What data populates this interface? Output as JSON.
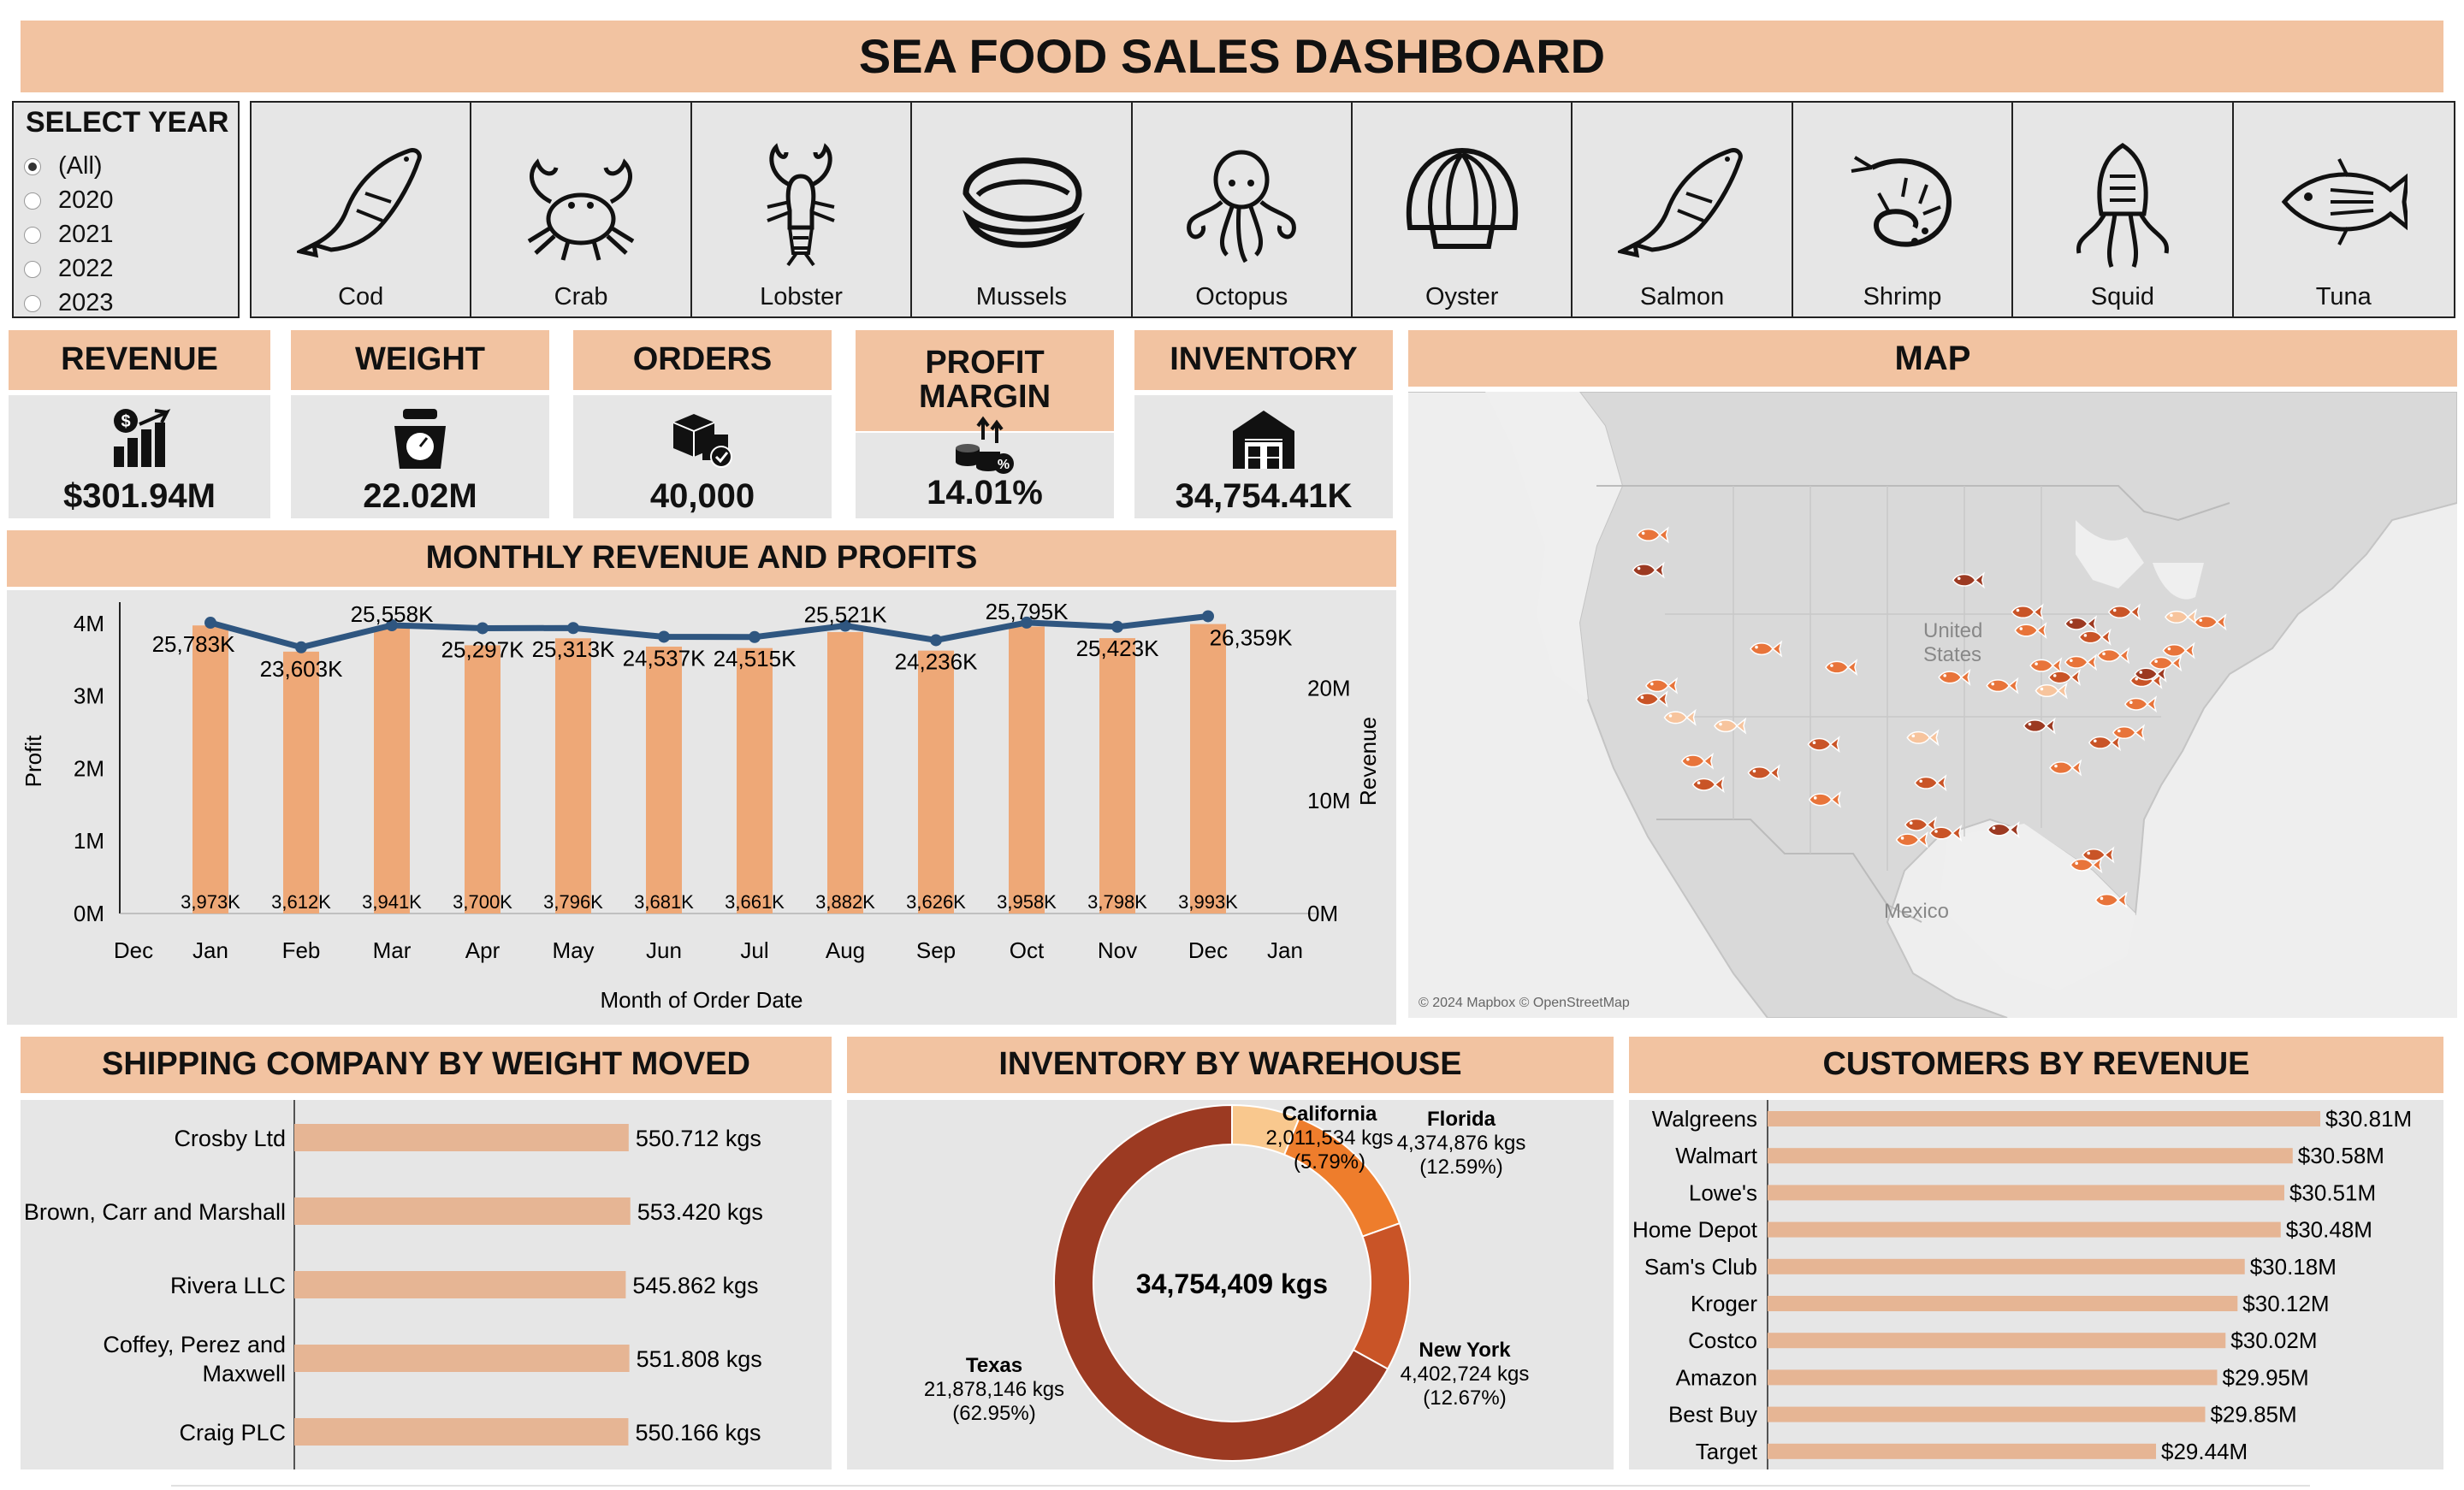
{
  "title": "SEA FOOD SALES DASHBOARD",
  "year_filter": {
    "label": "SELECT YEAR",
    "options": [
      "(All)",
      "2020",
      "2021",
      "2022",
      "2023"
    ],
    "selected": "(All)"
  },
  "species": [
    {
      "name": "Cod",
      "icon": "cod-icon"
    },
    {
      "name": "Crab",
      "icon": "crab-icon"
    },
    {
      "name": "Lobster",
      "icon": "lobster-icon"
    },
    {
      "name": "Mussels",
      "icon": "mussels-icon"
    },
    {
      "name": "Octopus",
      "icon": "octopus-icon"
    },
    {
      "name": "Oyster",
      "icon": "oyster-icon"
    },
    {
      "name": "Salmon",
      "icon": "salmon-icon"
    },
    {
      "name": "Shrimp",
      "icon": "shrimp-icon"
    },
    {
      "name": "Squid",
      "icon": "squid-icon"
    },
    {
      "name": "Tuna",
      "icon": "tuna-icon"
    }
  ],
  "kpis": {
    "revenue": {
      "label": "REVENUE",
      "value": "$301.94M",
      "icon": "revenue-growth-icon"
    },
    "weight": {
      "label": "WEIGHT",
      "value": "22.02M",
      "icon": "scale-icon"
    },
    "orders": {
      "label": "ORDERS",
      "value": "40,000",
      "icon": "boxes-icon"
    },
    "profit_margin": {
      "label_line1": "PROFIT",
      "label_line2": "MARGIN",
      "value": "14.01%",
      "icon": "coins-percent-icon"
    },
    "inventory": {
      "label": "INVENTORY",
      "value": "34,754.41K",
      "icon": "warehouse-icon"
    }
  },
  "map": {
    "title": "MAP",
    "label_us_1": "United",
    "label_us_2": "States",
    "label_mexico": "Mexico",
    "attribution": "© 2024 Mapbox © OpenStreetMap"
  },
  "monthly": {
    "title": "MONTHLY REVENUE AND PROFITS",
    "xlabel": "Month of Order Date",
    "left_axis_title": "Profit",
    "right_axis_title": "Revenue",
    "left_ticks": [
      "4M",
      "3M",
      "2M",
      "1M",
      "0M"
    ],
    "right_ticks": [
      "20M",
      "10M",
      "0M"
    ],
    "x_edge_start": "Dec",
    "x_edge_end": "Jan"
  },
  "chart_data": [
    {
      "type": "bar+line",
      "title": "MONTHLY REVENUE AND PROFITS",
      "categories": [
        "Jan",
        "Feb",
        "Mar",
        "Apr",
        "May",
        "Jun",
        "Jul",
        "Aug",
        "Sep",
        "Oct",
        "Nov",
        "Dec"
      ],
      "series": [
        {
          "name": "Profit",
          "type": "bar",
          "axis": "left",
          "values": [
            3973,
            3612,
            3941,
            3700,
            3796,
            3681,
            3661,
            3882,
            3626,
            3958,
            3798,
            3993
          ],
          "labels": [
            "3,973K",
            "3,612K",
            "3,941K",
            "3,700K",
            "3,796K",
            "3,681K",
            "3,661K",
            "3,882K",
            "3,626K",
            "3,958K",
            "3,798K",
            "3,993K"
          ]
        },
        {
          "name": "Revenue",
          "type": "line",
          "axis": "right",
          "values": [
            25783,
            23603,
            25558,
            25297,
            25313,
            24537,
            24515,
            25521,
            24236,
            25795,
            25423,
            26359
          ],
          "labels": [
            "25,783K",
            "23,603K",
            "25,558K",
            "25,297K",
            "25,313K",
            "24,537K",
            "24,515K",
            "25,521K",
            "24,236K",
            "25,795K",
            "25,423K",
            "26,359K"
          ]
        }
      ],
      "xlabel": "Month of Order Date",
      "ylabel": "Profit",
      "y2label": "Revenue",
      "ylim": [
        0,
        4200
      ],
      "y2lim": [
        0,
        27000
      ],
      "colors": {
        "bar": "#eea877",
        "line": "#2f5680"
      }
    },
    {
      "type": "bar",
      "orientation": "horizontal",
      "title": "SHIPPING COMPANY BY WEIGHT MOVED",
      "categories": [
        "Crosby Ltd",
        "Brown, Carr and Marshall",
        "Rivera LLC",
        "Coffey, Perez and Maxwell",
        "Craig PLC"
      ],
      "category_lines": [
        [
          "Crosby Ltd"
        ],
        [
          "Brown, Carr and Marshall"
        ],
        [
          "Rivera LLC"
        ],
        [
          "Coffey, Perez and",
          "Maxwell"
        ],
        [
          "Craig PLC"
        ]
      ],
      "values": [
        550.712,
        553.42,
        545.862,
        551.808,
        550.166
      ],
      "labels": [
        "550.712 kgs",
        "553.420 kgs",
        "545.862 kgs",
        "551.808 kgs",
        "550.166 kgs"
      ],
      "xlim": [
        0,
        620
      ],
      "colors": {
        "bar": "#e6b594"
      }
    },
    {
      "type": "pie",
      "title": "INVENTORY BY WAREHOUSE",
      "center_label": "34,754,409 kgs",
      "slices": [
        {
          "name": "California",
          "value": 2011534,
          "value_label": "2,011,534 kgs",
          "pct": "(5.79%)",
          "color": "#f9c88e"
        },
        {
          "name": "Florida",
          "value": 4374876,
          "value_label": "4,374,876 kgs",
          "pct": "(12.59%)",
          "color": "#ee7d2c"
        },
        {
          "name": "New York",
          "value": 4402724,
          "value_label": "4,402,724 kgs",
          "pct": "(12.67%)",
          "color": "#c95427"
        },
        {
          "name": "Texas",
          "value": 21878146,
          "value_label": "21,878,146 kgs",
          "pct": "(62.95%)",
          "color": "#9c3a22"
        }
      ]
    },
    {
      "type": "bar",
      "orientation": "horizontal",
      "title": "CUSTOMERS BY REVENUE",
      "categories": [
        "Walgreens",
        "Walmart",
        "Lowe's",
        "Home Depot",
        "Sam's Club",
        "Kroger",
        "Costco",
        "Amazon",
        "Best Buy",
        "Target"
      ],
      "values": [
        30.81,
        30.58,
        30.51,
        30.48,
        30.18,
        30.12,
        30.02,
        29.95,
        29.85,
        29.44
      ],
      "labels": [
        "$30.81M",
        "$30.58M",
        "$30.51M",
        "$30.48M",
        "$30.18M",
        "$30.12M",
        "$30.02M",
        "$29.95M",
        "$29.85M",
        "$29.44M"
      ],
      "xlim": [
        0,
        30.81
      ],
      "colors": {
        "bar": "#e6b594"
      }
    }
  ],
  "map_points": [
    {
      "lon": -122.3,
      "lat": 47.6,
      "c": "#e8743a"
    },
    {
      "lon": -122.7,
      "lat": 45.5,
      "c": "#9c3a22"
    },
    {
      "lon": -122.4,
      "lat": 37.8,
      "c": "#c95427"
    },
    {
      "lon": -121.5,
      "lat": 38.6,
      "c": "#e8743a"
    },
    {
      "lon": -119.8,
      "lat": 36.7,
      "c": "#f7c49d"
    },
    {
      "lon": -118.2,
      "lat": 34.1,
      "c": "#e8743a"
    },
    {
      "lon": -117.2,
      "lat": 32.7,
      "c": "#c95427"
    },
    {
      "lon": -115.2,
      "lat": 36.2,
      "c": "#f7c49d"
    },
    {
      "lon": -112.1,
      "lat": 33.4,
      "c": "#c95427"
    },
    {
      "lon": -111.9,
      "lat": 40.8,
      "c": "#e8743a"
    },
    {
      "lon": -106.6,
      "lat": 35.1,
      "c": "#c95427"
    },
    {
      "lon": -106.5,
      "lat": 31.8,
      "c": "#e8743a"
    },
    {
      "lon": -104.99,
      "lat": 39.7,
      "c": "#e8743a"
    },
    {
      "lon": -97.5,
      "lat": 35.5,
      "c": "#f7c49d"
    },
    {
      "lon": -96.8,
      "lat": 32.8,
      "c": "#c95427"
    },
    {
      "lon": -97.7,
      "lat": 30.3,
      "c": "#c95427"
    },
    {
      "lon": -98.5,
      "lat": 29.4,
      "c": "#e8743a"
    },
    {
      "lon": -95.4,
      "lat": 29.8,
      "c": "#c95427"
    },
    {
      "lon": -94.6,
      "lat": 39.1,
      "c": "#e8743a"
    },
    {
      "lon": -93.3,
      "lat": 44.9,
      "c": "#9c3a22"
    },
    {
      "lon": -90.2,
      "lat": 38.6,
      "c": "#e8743a"
    },
    {
      "lon": -90.1,
      "lat": 30.0,
      "c": "#9c3a22"
    },
    {
      "lon": -87.6,
      "lat": 41.9,
      "c": "#e8743a"
    },
    {
      "lon": -87.9,
      "lat": 43.0,
      "c": "#c95427"
    },
    {
      "lon": -86.2,
      "lat": 39.8,
      "c": "#e8743a"
    },
    {
      "lon": -86.8,
      "lat": 36.2,
      "c": "#9c3a22"
    },
    {
      "lon": -84.4,
      "lat": 33.7,
      "c": "#e8743a"
    },
    {
      "lon": -84.5,
      "lat": 39.1,
      "c": "#c95427"
    },
    {
      "lon": -83.0,
      "lat": 42.3,
      "c": "#9c3a22"
    },
    {
      "lon": -83.0,
      "lat": 40.0,
      "c": "#e8743a"
    },
    {
      "lon": -81.7,
      "lat": 41.5,
      "c": "#c95427"
    },
    {
      "lon": -80.0,
      "lat": 40.4,
      "c": "#e8743a"
    },
    {
      "lon": -80.8,
      "lat": 35.2,
      "c": "#c95427"
    },
    {
      "lon": -78.6,
      "lat": 35.8,
      "c": "#e8743a"
    },
    {
      "lon": -77.0,
      "lat": 38.9,
      "c": "#c95427"
    },
    {
      "lon": -76.6,
      "lat": 39.3,
      "c": "#9c3a22"
    },
    {
      "lon": -75.2,
      "lat": 39.95,
      "c": "#e8743a"
    },
    {
      "lon": -74.0,
      "lat": 40.7,
      "c": "#e8743a"
    },
    {
      "lon": -73.8,
      "lat": 42.7,
      "c": "#f7c49d"
    },
    {
      "lon": -71.1,
      "lat": 42.4,
      "c": "#e8743a"
    },
    {
      "lon": -79.0,
      "lat": 43.0,
      "c": "#c95427"
    },
    {
      "lon": -81.4,
      "lat": 28.5,
      "c": "#c95427"
    },
    {
      "lon": -82.5,
      "lat": 27.9,
      "c": "#e8743a"
    },
    {
      "lon": -80.2,
      "lat": 25.8,
      "c": "#e8743a"
    },
    {
      "lon": -85.7,
      "lat": 38.3,
      "c": "#f7c49d"
    },
    {
      "lon": -77.5,
      "lat": 37.5,
      "c": "#e8743a"
    }
  ]
}
